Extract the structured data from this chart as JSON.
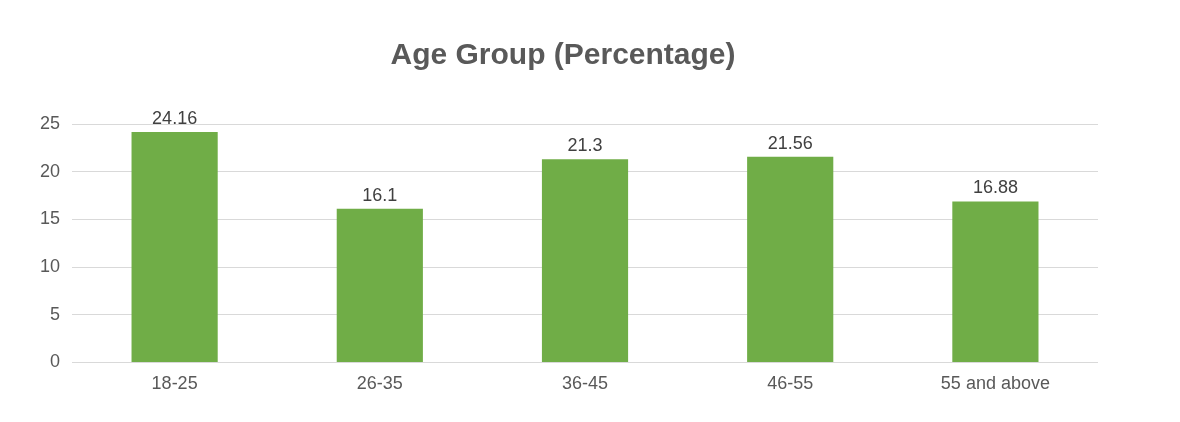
{
  "chart_data": {
    "type": "bar",
    "title": "Age Group (Percentage)",
    "categories": [
      "18-25",
      "26-35",
      "36-45",
      "46-55",
      "55 and above"
    ],
    "values": [
      24.16,
      16.1,
      21.3,
      21.56,
      16.88
    ],
    "color": "#70ad47",
    "ylim": [
      0,
      25
    ],
    "yticks": [
      0,
      5,
      10,
      15,
      20,
      25
    ],
    "grid": "y",
    "data_labels": true,
    "legend": false
  }
}
